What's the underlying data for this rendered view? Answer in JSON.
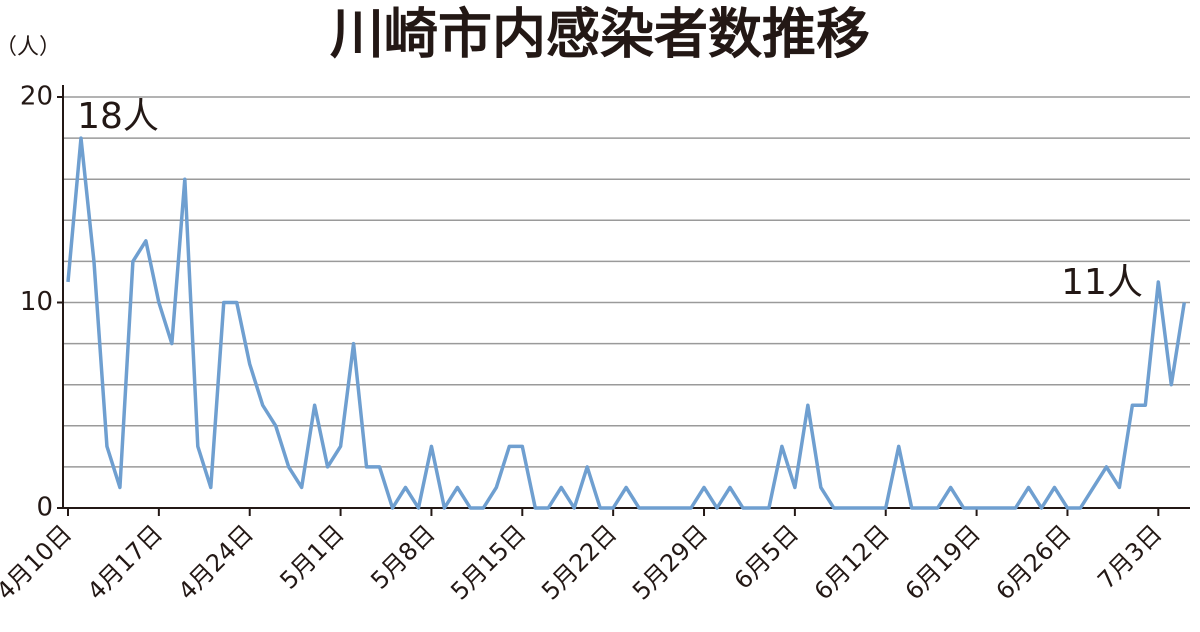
{
  "chart_data": {
    "type": "line",
    "title": "川崎市内感染者数推移",
    "y_unit": "（人）",
    "categories": [
      "4月10日",
      null,
      null,
      null,
      null,
      null,
      null,
      "4月17日",
      null,
      null,
      null,
      null,
      null,
      null,
      "4月24日",
      null,
      null,
      null,
      null,
      null,
      null,
      "5月1日",
      null,
      null,
      null,
      null,
      null,
      null,
      "5月8日",
      null,
      null,
      null,
      null,
      null,
      null,
      "5月15日",
      null,
      null,
      null,
      null,
      null,
      null,
      "5月22日",
      null,
      null,
      null,
      null,
      null,
      null,
      "5月29日",
      null,
      null,
      null,
      null,
      null,
      null,
      "6月5日",
      null,
      null,
      null,
      null,
      null,
      null,
      "6月12日",
      null,
      null,
      null,
      null,
      null,
      null,
      "6月19日",
      null,
      null,
      null,
      null,
      null,
      null,
      "6月26日",
      null,
      null,
      null,
      null,
      null,
      null,
      "7月3日",
      null,
      null
    ],
    "values": [
      11,
      18,
      12,
      3,
      1,
      12,
      13,
      10,
      8,
      16,
      3,
      1,
      10,
      10,
      7,
      5,
      4,
      2,
      1,
      5,
      2,
      3,
      8,
      2,
      2,
      0,
      1,
      0,
      3,
      0,
      1,
      0,
      0,
      1,
      3,
      3,
      0,
      0,
      1,
      0,
      2,
      0,
      0,
      1,
      0,
      0,
      0,
      0,
      0,
      1,
      0,
      1,
      0,
      0,
      0,
      3,
      1,
      5,
      1,
      0,
      0,
      0,
      0,
      0,
      3,
      0,
      0,
      0,
      1,
      0,
      0,
      0,
      0,
      0,
      1,
      0,
      1,
      0,
      0,
      1,
      2,
      1,
      5,
      5,
      11,
      6,
      10
    ],
    "color": "#6f9fd0",
    "ylim": [
      0,
      20
    ],
    "yticks": [
      0,
      10,
      20
    ],
    "grid_lines": [
      0,
      2,
      4,
      6,
      8,
      10,
      12,
      14,
      16,
      18,
      20
    ],
    "annotations": [
      "18人",
      "11人"
    ]
  }
}
